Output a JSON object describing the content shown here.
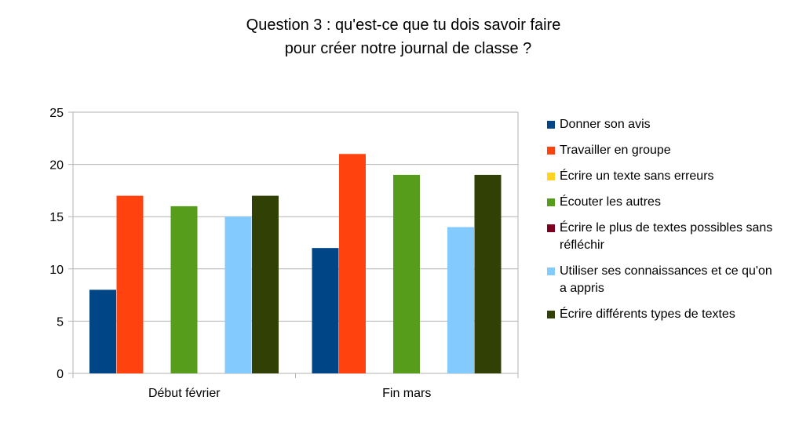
{
  "chart_data": {
    "type": "bar",
    "title": [
      "Question 3 : qu'est-ce que tu dois savoir faire",
      "pour créer notre journal de classe ?"
    ],
    "categories": [
      "Début février",
      "Fin mars"
    ],
    "series": [
      {
        "name": "Donner son avis",
        "color": "#004586",
        "values": [
          8,
          12
        ]
      },
      {
        "name": "Travailler en groupe",
        "color": "#ff420e",
        "values": [
          17,
          21
        ]
      },
      {
        "name": "Écrire un texte sans erreurs",
        "color": "#ffd320",
        "values": [
          0,
          0
        ]
      },
      {
        "name": "Écouter les autres",
        "color": "#579d1c",
        "values": [
          16,
          19
        ]
      },
      {
        "name": "Écrire le plus de textes possibles sans réfléchir",
        "color": "#7e0021",
        "values": [
          0,
          0
        ]
      },
      {
        "name": "Utiliser ses connaissances et ce qu'on a appris",
        "color": "#83caff",
        "values": [
          15,
          14
        ]
      },
      {
        "name": "Écrire différents types de textes",
        "color": "#314004",
        "values": [
          17,
          19
        ]
      }
    ],
    "ylim": [
      0,
      25
    ],
    "yticks": [
      0,
      5,
      10,
      15,
      20,
      25
    ],
    "grid": true,
    "legend": "right"
  }
}
